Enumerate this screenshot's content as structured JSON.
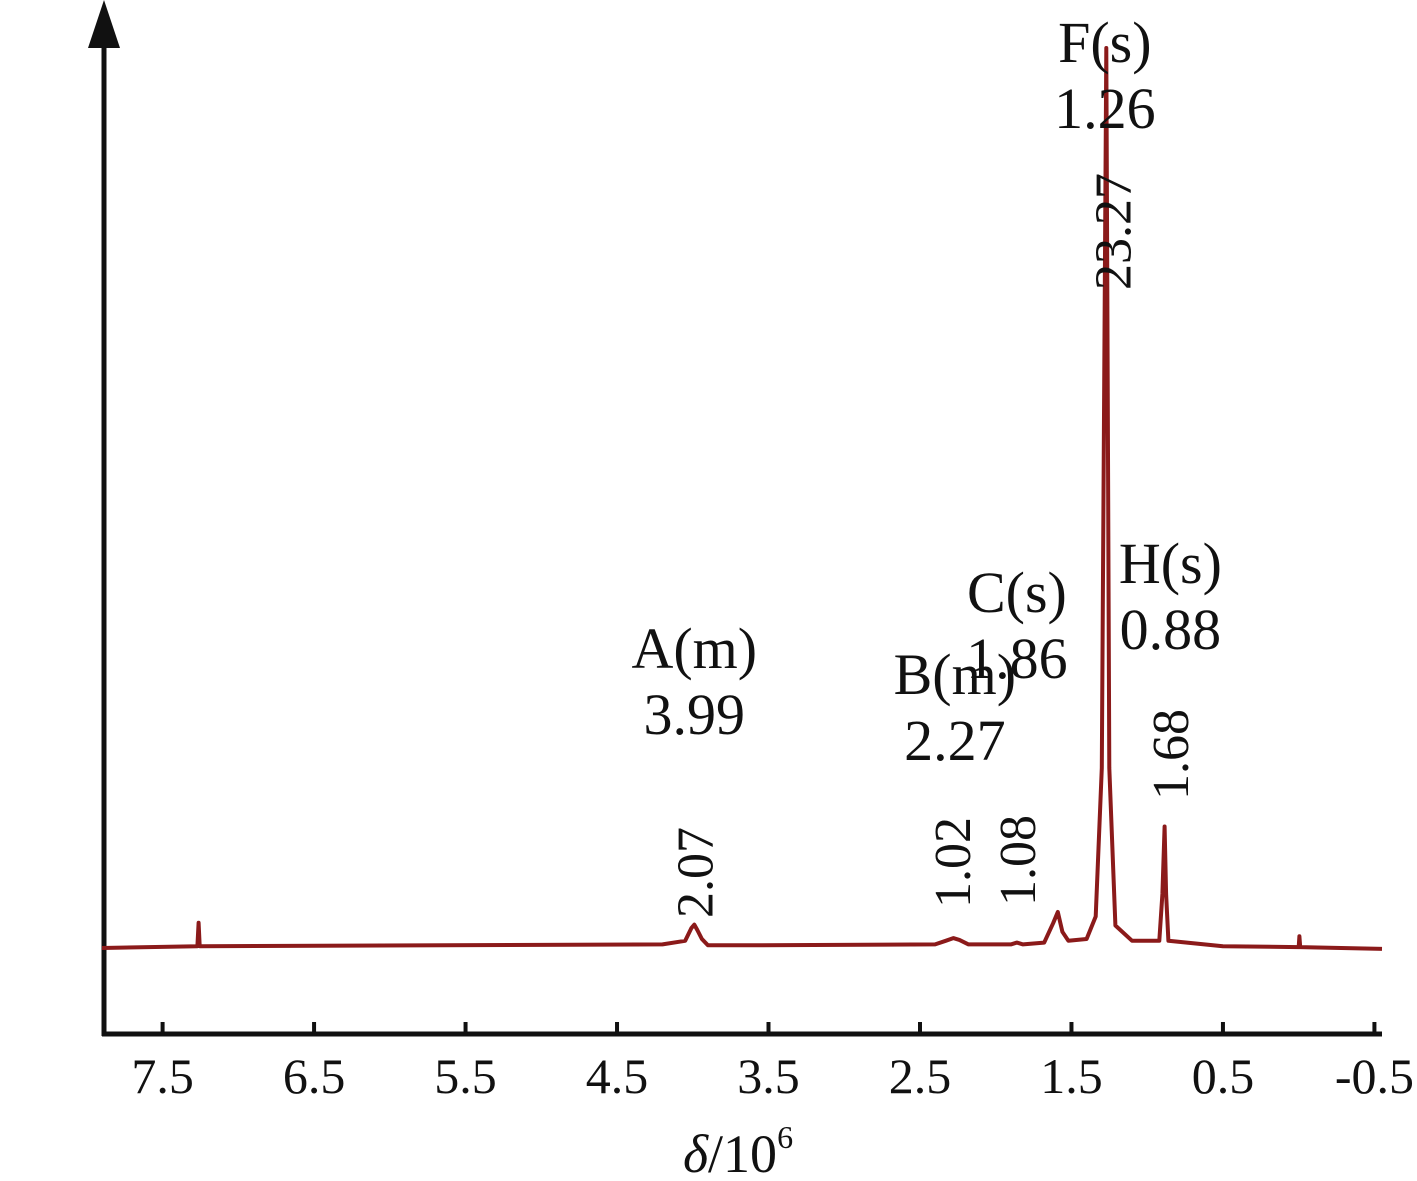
{
  "chart_data": {
    "type": "line",
    "title": "",
    "xlabel": {
      "variable": "δ",
      "rest": "/10",
      "superscript": "6"
    },
    "ylabel": "",
    "xlim": [
      7.9,
      -0.55
    ],
    "x_reversed": true,
    "grid": false,
    "xticks": [
      7.5,
      6.5,
      5.5,
      4.5,
      3.5,
      2.5,
      1.5,
      0.5,
      -0.5
    ],
    "xtick_labels": [
      "7.5",
      "6.5",
      "5.5",
      "4.5",
      "3.5",
      "2.5",
      "1.5",
      "0.5",
      "-0.5"
    ],
    "line_color": "#8b1a1a",
    "spectrum": [
      {
        "x": 7.9,
        "y": 0.0
      },
      {
        "x": 7.27,
        "y": 0.002
      },
      {
        "x": 7.262,
        "y": 0.028
      },
      {
        "x": 7.255,
        "y": 0.002
      },
      {
        "x": 4.2,
        "y": 0.004
      },
      {
        "x": 4.05,
        "y": 0.008
      },
      {
        "x": 4.01,
        "y": 0.022
      },
      {
        "x": 3.99,
        "y": 0.026
      },
      {
        "x": 3.97,
        "y": 0.02
      },
      {
        "x": 3.94,
        "y": 0.01
      },
      {
        "x": 3.9,
        "y": 0.003
      },
      {
        "x": 3.6,
        "y": 0.003
      },
      {
        "x": 2.4,
        "y": 0.004
      },
      {
        "x": 2.33,
        "y": 0.008
      },
      {
        "x": 2.28,
        "y": 0.011
      },
      {
        "x": 2.24,
        "y": 0.009
      },
      {
        "x": 2.18,
        "y": 0.004
      },
      {
        "x": 1.9,
        "y": 0.004
      },
      {
        "x": 1.86,
        "y": 0.006
      },
      {
        "x": 1.82,
        "y": 0.004
      },
      {
        "x": 1.68,
        "y": 0.006
      },
      {
        "x": 1.62,
        "y": 0.028
      },
      {
        "x": 1.59,
        "y": 0.04
      },
      {
        "x": 1.56,
        "y": 0.018
      },
      {
        "x": 1.52,
        "y": 0.008
      },
      {
        "x": 1.4,
        "y": 0.01
      },
      {
        "x": 1.34,
        "y": 0.035
      },
      {
        "x": 1.3,
        "y": 0.2
      },
      {
        "x": 1.27,
        "y": 1.0
      },
      {
        "x": 1.25,
        "y": 0.2
      },
      {
        "x": 1.21,
        "y": 0.025
      },
      {
        "x": 1.1,
        "y": 0.008
      },
      {
        "x": 0.92,
        "y": 0.008
      },
      {
        "x": 0.9,
        "y": 0.06
      },
      {
        "x": 0.885,
        "y": 0.135
      },
      {
        "x": 0.875,
        "y": 0.06
      },
      {
        "x": 0.86,
        "y": 0.008
      },
      {
        "x": 0.5,
        "y": 0.002
      },
      {
        "x": 0.0,
        "y": 0.001
      },
      {
        "x": -0.005,
        "y": 0.013
      },
      {
        "x": -0.01,
        "y": 0.001
      },
      {
        "x": -0.55,
        "y": -0.001
      }
    ],
    "peaks": [
      {
        "letter": "A(m)",
        "shift": "3.99",
        "x": 3.99
      },
      {
        "letter": "B(m)",
        "shift": "2.27",
        "x": 2.27
      },
      {
        "letter": "C(s)",
        "shift": "1.86",
        "x": 1.86
      },
      {
        "letter": "F(s)",
        "shift": "1.26",
        "x": 1.26
      },
      {
        "letter": "H(s)",
        "shift": "0.88",
        "x": 0.88
      }
    ],
    "integrals": [
      {
        "value": "2.07",
        "x": 3.99
      },
      {
        "value": "1.02",
        "x": 2.29
      },
      {
        "value": "1.08",
        "x": 1.86
      },
      {
        "value": "23.27",
        "x": 1.23
      },
      {
        "value": "1.68",
        "x": 0.85
      }
    ]
  }
}
